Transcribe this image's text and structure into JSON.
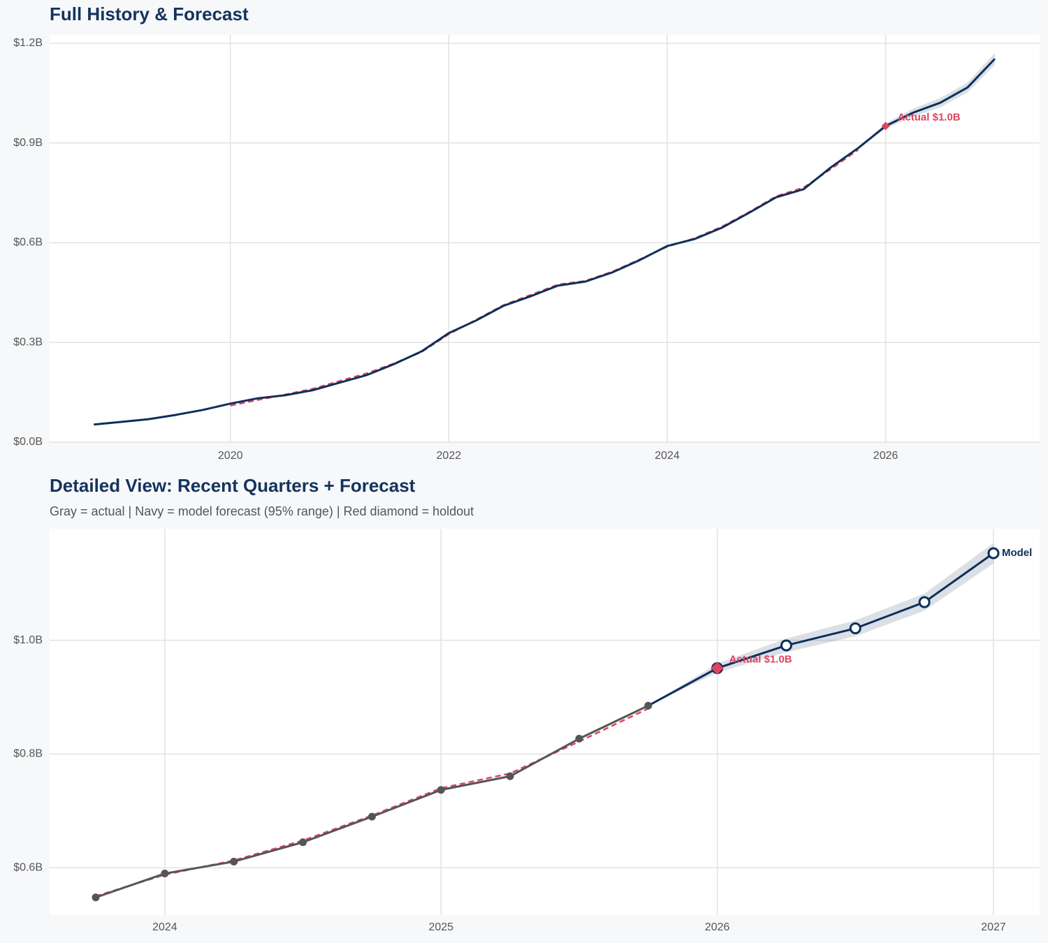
{
  "chart_data": [
    {
      "type": "line",
      "title": "Full History & Forecast",
      "x": [
        2018.75,
        2019.0,
        2019.25,
        2019.5,
        2019.75,
        2020.0,
        2020.25,
        2020.5,
        2020.75,
        2021.0,
        2021.25,
        2021.5,
        2021.75,
        2022.0,
        2022.25,
        2022.5,
        2022.75,
        2023.0,
        2023.25,
        2023.5,
        2023.75,
        2024.0,
        2024.25,
        2024.5,
        2024.75,
        2025.0,
        2025.25,
        2025.5,
        2025.75,
        2026.0,
        2026.25,
        2026.5,
        2026.75,
        2027.0
      ],
      "band": {
        "color": "#0d2f5a",
        "lower": [
          null,
          null,
          null,
          null,
          null,
          null,
          null,
          null,
          null,
          null,
          null,
          null,
          null,
          null,
          null,
          null,
          null,
          null,
          null,
          null,
          null,
          null,
          null,
          null,
          null,
          null,
          null,
          null,
          0.885,
          0.943,
          0.979,
          1.007,
          1.052,
          1.135
        ],
        "upper": [
          null,
          null,
          null,
          null,
          null,
          null,
          null,
          null,
          null,
          null,
          null,
          null,
          null,
          null,
          null,
          null,
          null,
          null,
          null,
          null,
          null,
          null,
          null,
          null,
          null,
          null,
          null,
          null,
          0.885,
          0.959,
          1.003,
          1.035,
          1.082,
          1.171
        ]
      },
      "series": [
        {
          "color": "#e0435f",
          "dash": true,
          "values": [
            null,
            null,
            null,
            null,
            null,
            0.11,
            0.127,
            0.143,
            0.16,
            0.184,
            0.207,
            0.237,
            0.271,
            0.325,
            0.368,
            0.412,
            0.443,
            0.474,
            0.485,
            0.513,
            0.55,
            0.588,
            0.613,
            0.648,
            0.692,
            0.74,
            0.766,
            0.822,
            0.88,
            null,
            null,
            null,
            null,
            null
          ]
        },
        {
          "color": "#0d2f5a",
          "values": [
            0.053,
            0.061,
            0.069,
            0.082,
            0.097,
            0.116,
            0.132,
            0.141,
            0.156,
            0.179,
            0.202,
            0.235,
            0.273,
            0.328,
            0.366,
            0.41,
            0.439,
            0.471,
            0.483,
            0.511,
            0.548,
            0.59,
            0.611,
            0.645,
            0.69,
            0.737,
            0.761,
            0.827,
            0.885,
            null,
            null,
            null,
            null,
            null
          ]
        },
        {
          "color": "#0d2f5a",
          "values": [
            null,
            null,
            null,
            null,
            null,
            null,
            null,
            null,
            null,
            null,
            null,
            null,
            null,
            null,
            null,
            null,
            null,
            null,
            null,
            null,
            null,
            null,
            null,
            null,
            null,
            null,
            null,
            null,
            0.885,
            0.951,
            0.991,
            1.021,
            1.067,
            1.153
          ]
        }
      ],
      "holdout": {
        "x": 2026,
        "value": 0.951,
        "label": "Actual $1.0B",
        "color": "#e0435f"
      },
      "xlim": [
        2018.345,
        2027.41
      ],
      "ylim": [
        0,
        1.225
      ],
      "xticks": [
        2020,
        2022,
        2024,
        2026
      ],
      "yticks": [
        {
          "value": 0,
          "label": "$0.0B"
        },
        {
          "value": 0.3,
          "label": "$0.3B"
        },
        {
          "value": 0.6,
          "label": "$0.6B"
        },
        {
          "value": 0.9,
          "label": "$0.9B"
        },
        {
          "value": 1.2,
          "label": "$1.2B"
        }
      ],
      "grid": true
    },
    {
      "type": "line",
      "title": "Detailed View: Recent Quarters + Forecast",
      "subtitle": "Gray = actual  |  Navy = model forecast (95% range)  |  Red diamond = holdout",
      "x": [
        2023.75,
        2024.0,
        2024.25,
        2024.5,
        2024.75,
        2025.0,
        2025.25,
        2025.5,
        2025.75,
        2026.0,
        2026.25,
        2026.5,
        2026.75,
        2027.0
      ],
      "band": {
        "color": "#0d2f5a",
        "lower": [
          null,
          null,
          null,
          null,
          null,
          null,
          null,
          null,
          0.885,
          0.943,
          0.979,
          1.007,
          1.052,
          1.135
        ],
        "upper": [
          null,
          null,
          null,
          null,
          null,
          null,
          null,
          null,
          0.885,
          0.959,
          1.003,
          1.035,
          1.082,
          1.171
        ]
      },
      "series": [
        {
          "color": "#e0435f",
          "dash": true,
          "values": [
            0.55,
            0.588,
            0.613,
            0.648,
            0.692,
            0.74,
            0.766,
            0.822,
            0.88,
            null,
            null,
            null,
            null,
            null
          ]
        },
        {
          "color": "#555555",
          "marker": "dot",
          "values": [
            0.548,
            0.59,
            0.611,
            0.645,
            0.69,
            0.737,
            0.761,
            0.827,
            0.885,
            null,
            null,
            null,
            null,
            null
          ]
        },
        {
          "name": "Model",
          "color": "#0d2f5a",
          "marker": "open",
          "values": [
            null,
            null,
            null,
            null,
            null,
            null,
            null,
            null,
            0.885,
            0.951,
            0.991,
            1.021,
            1.067,
            1.153
          ]
        }
      ],
      "holdout": {
        "x": 2026,
        "value": 0.951,
        "label": "Actual $1.0B",
        "color": "#e0435f"
      },
      "xlim": [
        2023.583,
        2027.167
      ],
      "ylim": [
        0.517,
        1.196
      ],
      "xticks": [
        2024,
        2025,
        2026,
        2027
      ],
      "yticks": [
        {
          "value": 0.6,
          "label": "$0.6B"
        },
        {
          "value": 0.8,
          "label": "$0.8B"
        },
        {
          "value": 1.0,
          "label": "$1.0B"
        }
      ],
      "grid": true
    }
  ]
}
